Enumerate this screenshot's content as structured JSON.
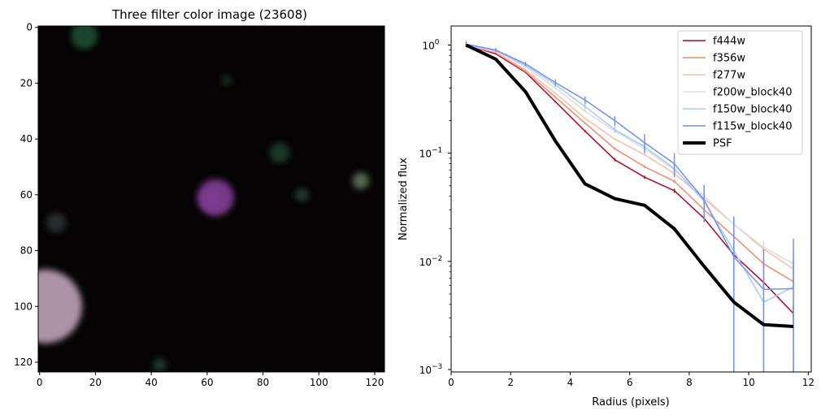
{
  "chart_data": [
    {
      "type": "image",
      "title": "Three filter color image (23608)",
      "xlabel": "",
      "ylabel": "",
      "xlim": [
        -0.5,
        123.5
      ],
      "ylim": [
        123.5,
        -0.5
      ],
      "x_ticks": [
        0,
        20,
        40,
        60,
        80,
        100,
        120
      ],
      "y_ticks": [
        0,
        20,
        40,
        60,
        80,
        100,
        120
      ],
      "background_color": "#050304",
      "sources": [
        {
          "x": 62,
          "y": 62,
          "r": 6,
          "color": "#e44ad2"
        },
        {
          "x": 63,
          "y": 61,
          "r": 11,
          "color": "#7a3a8e"
        },
        {
          "x": 2,
          "y": 100,
          "r": 22,
          "color": "#b79bb0"
        },
        {
          "x": 16,
          "y": 3,
          "r": 8,
          "color": "#1e4a30"
        },
        {
          "x": 86,
          "y": 45,
          "r": 6,
          "color": "#1f3a2a"
        },
        {
          "x": 115,
          "y": 55,
          "r": 5,
          "color": "#5b6a5a"
        },
        {
          "x": 94,
          "y": 60,
          "r": 4,
          "color": "#2b3a36"
        },
        {
          "x": 43,
          "y": 121,
          "r": 4,
          "color": "#223a34"
        },
        {
          "x": 67,
          "y": 19,
          "r": 3,
          "color": "#1c3324"
        },
        {
          "x": 6,
          "y": 70,
          "r": 6,
          "color": "#2a2f2e"
        }
      ]
    },
    {
      "type": "line",
      "title": "",
      "xlabel": "Radius (pixels)",
      "ylabel": "Normalized flux",
      "xlim": [
        0,
        12.1
      ],
      "ylim": [
        0.00095,
        1.5
      ],
      "yscale": "log",
      "x_ticks": [
        0,
        2,
        4,
        6,
        8,
        10,
        12
      ],
      "y_ticks": [
        {
          "value": 0.001,
          "base": "10",
          "exp": "−3"
        },
        {
          "value": 0.01,
          "base": "10",
          "exp": "−2"
        },
        {
          "value": 0.1,
          "base": "10",
          "exp": "−1"
        },
        {
          "value": 1,
          "base": "10",
          "exp": "0"
        }
      ],
      "legend_location": "upper right",
      "x": [
        0.5,
        1.5,
        2.5,
        3.5,
        4.5,
        5.5,
        6.5,
        7.5,
        8.5,
        9.5,
        10.5,
        11.5
      ],
      "series": [
        {
          "name": "f444w",
          "color": "#b40426",
          "width": 1.5,
          "values": [
            1.0,
            0.83,
            0.56,
            0.3,
            0.16,
            0.087,
            0.06,
            0.045,
            0.025,
            0.0115,
            0.0064,
            0.0033
          ],
          "err": [
            0.01,
            0.01,
            0.01,
            0.006,
            0.004,
            0.003,
            0.002,
            0.002,
            0.002,
            0.0012,
            0.0008,
            0.0006
          ]
        },
        {
          "name": "f356w",
          "color": "#f08a6c",
          "width": 1.5,
          "values": [
            1.0,
            0.85,
            0.57,
            0.33,
            0.19,
            0.11,
            0.075,
            0.055,
            0.03,
            0.017,
            0.0095,
            0.0065
          ],
          "err": [
            0.01,
            0.01,
            0.01,
            0.006,
            0.004,
            0.003,
            0.002,
            0.002,
            0.002,
            0.0012,
            0.0008,
            0.0006
          ]
        },
        {
          "name": "f277w",
          "color": "#f6bfa6",
          "width": 1.5,
          "values": [
            1.0,
            0.86,
            0.59,
            0.36,
            0.21,
            0.135,
            0.097,
            0.065,
            0.038,
            0.022,
            0.013,
            0.0085
          ],
          "err": [
            0.01,
            0.01,
            0.01,
            0.006,
            0.004,
            0.003,
            0.002,
            0.002,
            0.002,
            0.0012,
            0.0008,
            0.0006
          ]
        },
        {
          "name": "f200w_block40",
          "color": "#dddcdc",
          "width": 1.5,
          "values": [
            1.0,
            0.88,
            0.63,
            0.4,
            0.245,
            0.16,
            0.11,
            0.07,
            0.04,
            0.022,
            0.0135,
            0.0095
          ],
          "err": [
            0.02,
            0.015,
            0.012,
            0.01,
            0.008,
            0.006,
            0.004,
            0.003,
            0.003,
            0.003,
            0.002,
            0.002
          ]
        },
        {
          "name": "f150w_block40",
          "color": "#aac7fd",
          "width": 1.5,
          "values": [
            1.0,
            0.89,
            0.65,
            0.43,
            0.27,
            0.165,
            0.115,
            0.072,
            0.036,
            0.0125,
            0.0042,
            0.0058
          ],
          "err": [
            0.03,
            0.02,
            0.02,
            0.02,
            0.015,
            0.012,
            0.01,
            0.008,
            0.008,
            0.007,
            0.006,
            0.005
          ]
        },
        {
          "name": "f115w_block40",
          "color": "#6f92f3",
          "width": 1.5,
          "values": [
            1.02,
            0.9,
            0.67,
            0.45,
            0.31,
            0.2,
            0.125,
            0.08,
            0.037,
            0.011,
            0.0055,
            0.0056
          ],
          "err": [
            0.07,
            0.04,
            0.03,
            0.03,
            0.025,
            0.02,
            0.025,
            0.02,
            0.014,
            0.015,
            0.0075,
            0.0105
          ]
        },
        {
          "name": "PSF",
          "color": "#000000",
          "width": 4,
          "values": [
            1.0,
            0.74,
            0.37,
            0.13,
            0.052,
            0.038,
            0.033,
            0.02,
            0.009,
            0.0042,
            0.0026,
            0.0025
          ]
        }
      ]
    }
  ]
}
